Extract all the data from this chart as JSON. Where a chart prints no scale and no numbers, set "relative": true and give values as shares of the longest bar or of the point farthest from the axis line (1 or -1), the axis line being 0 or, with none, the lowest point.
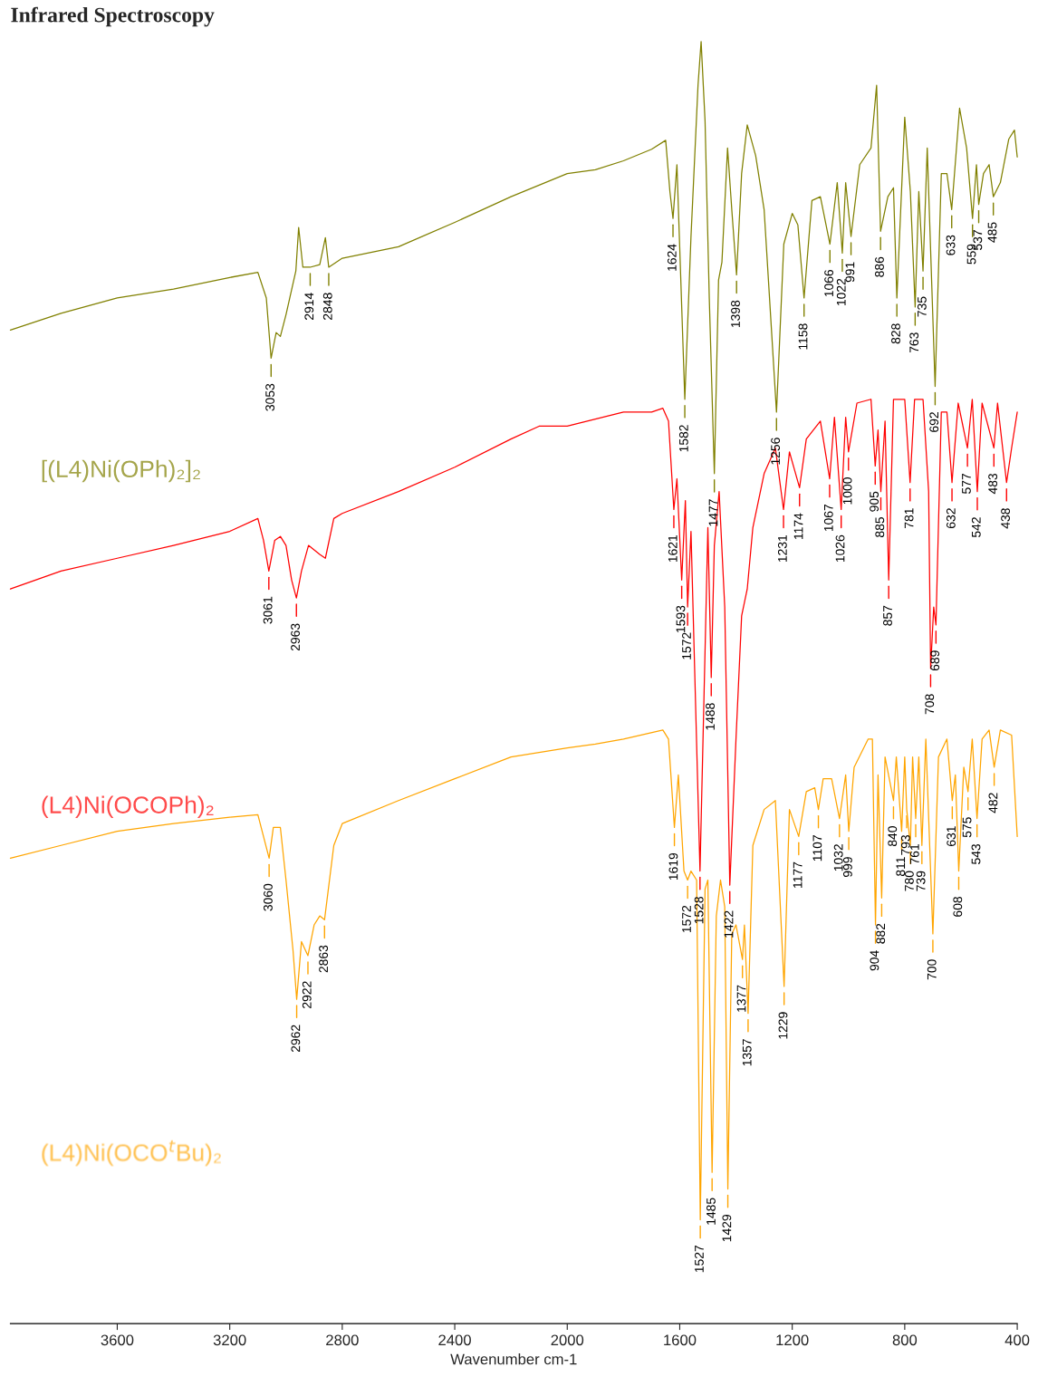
{
  "chart_data": {
    "type": "line",
    "title": "Infrared Spectroscopy",
    "xlabel": "Wavenumber cm-1",
    "relative": true,
    "tick_labels": "x",
    "grid": false,
    "legend": false,
    "marker": "none",
    "line_style": "solid",
    "xlim": [
      3980,
      400
    ],
    "xticks": [
      3600,
      3200,
      2800,
      2400,
      2000,
      1600,
      1200,
      800,
      400
    ],
    "series": [
      {
        "name": "[(L4)Ni(OPh)₂]₂",
        "color": "#808000",
        "x": [
          3980,
          3800,
          3600,
          3400,
          3200,
          3100,
          3070,
          3053,
          3035,
          3020,
          3000,
          2965,
          2955,
          2940,
          2914,
          2880,
          2860,
          2848,
          2800,
          2600,
          2400,
          2200,
          2000,
          1900,
          1800,
          1700,
          1650,
          1635,
          1624,
          1610,
          1582,
          1560,
          1535,
          1524,
          1510,
          1495,
          1477,
          1462,
          1450,
          1430,
          1415,
          1398,
          1380,
          1360,
          1330,
          1300,
          1256,
          1230,
          1200,
          1180,
          1158,
          1130,
          1100,
          1066,
          1040,
          1022,
          1010,
          991,
          960,
          920,
          900,
          886,
          860,
          840,
          828,
          800,
          780,
          763,
          750,
          735,
          720,
          692,
          670,
          650,
          633,
          605,
          580,
          559,
          545,
          537,
          520,
          500,
          485,
          460,
          430,
          410,
          400
        ],
        "values": [
          0.775,
          0.788,
          0.8,
          0.807,
          0.816,
          0.82,
          0.8,
          0.753,
          0.773,
          0.77,
          0.787,
          0.821,
          0.855,
          0.824,
          0.824,
          0.826,
          0.847,
          0.824,
          0.831,
          0.84,
          0.859,
          0.879,
          0.897,
          0.9,
          0.907,
          0.916,
          0.923,
          0.883,
          0.862,
          0.904,
          0.721,
          0.848,
          0.966,
          1.0,
          0.938,
          0.8,
          0.663,
          0.814,
          0.828,
          0.917,
          0.869,
          0.818,
          0.897,
          0.935,
          0.911,
          0.869,
          0.711,
          0.842,
          0.866,
          0.857,
          0.8,
          0.876,
          0.879,
          0.842,
          0.89,
          0.835,
          0.89,
          0.848,
          0.904,
          0.917,
          0.966,
          0.852,
          0.879,
          0.886,
          0.8,
          0.941,
          0.883,
          0.793,
          0.883,
          0.821,
          0.917,
          0.731,
          0.897,
          0.897,
          0.869,
          0.948,
          0.917,
          0.862,
          0.904,
          0.873,
          0.897,
          0.904,
          0.879,
          0.89,
          0.924,
          0.931,
          0.91
        ]
      },
      {
        "name": "(L4)Ni(OCOPh)₂",
        "color": "#ff0000",
        "x": [
          3980,
          3800,
          3600,
          3400,
          3200,
          3100,
          3080,
          3061,
          3040,
          3020,
          3000,
          2980,
          2963,
          2945,
          2920,
          2880,
          2860,
          2830,
          2800,
          2600,
          2400,
          2200,
          2100,
          2000,
          1800,
          1700,
          1660,
          1640,
          1621,
          1610,
          1593,
          1580,
          1572,
          1560,
          1528,
          1510,
          1500,
          1488,
          1477,
          1460,
          1440,
          1422,
          1400,
          1380,
          1360,
          1340,
          1300,
          1260,
          1231,
          1210,
          1174,
          1150,
          1100,
          1067,
          1050,
          1026,
          1010,
          1000,
          970,
          920,
          905,
          895,
          885,
          870,
          857,
          840,
          800,
          781,
          765,
          735,
          715,
          708,
          697,
          689,
          670,
          650,
          632,
          610,
          577,
          560,
          542,
          525,
          483,
          470,
          438,
          420,
          400
        ],
        "values": [
          0.573,
          0.587,
          0.597,
          0.607,
          0.618,
          0.628,
          0.611,
          0.587,
          0.611,
          0.614,
          0.607,
          0.58,
          0.566,
          0.587,
          0.607,
          0.6,
          0.597,
          0.628,
          0.632,
          0.649,
          0.668,
          0.69,
          0.7,
          0.7,
          0.711,
          0.711,
          0.714,
          0.704,
          0.635,
          0.659,
          0.58,
          0.642,
          0.559,
          0.618,
          0.353,
          0.525,
          0.621,
          0.504,
          0.607,
          0.649,
          0.559,
          0.342,
          0.456,
          0.552,
          0.573,
          0.621,
          0.663,
          0.683,
          0.635,
          0.68,
          0.652,
          0.69,
          0.704,
          0.659,
          0.707,
          0.635,
          0.707,
          0.68,
          0.718,
          0.721,
          0.669,
          0.697,
          0.649,
          0.704,
          0.58,
          0.721,
          0.721,
          0.656,
          0.721,
          0.721,
          0.649,
          0.511,
          0.559,
          0.545,
          0.711,
          0.711,
          0.656,
          0.718,
          0.683,
          0.721,
          0.649,
          0.718,
          0.683,
          0.718,
          0.656,
          0.683,
          0.711
        ]
      },
      {
        "name": "(L4)Ni(OCO$^{t}$Bu)₂",
        "color": "#ffa500",
        "x": [
          3980,
          3800,
          3600,
          3400,
          3200,
          3100,
          3080,
          3060,
          3045,
          3020,
          3000,
          2975,
          2962,
          2945,
          2922,
          2900,
          2880,
          2863,
          2830,
          2800,
          2600,
          2400,
          2200,
          2000,
          1900,
          1800,
          1660,
          1640,
          1619,
          1605,
          1585,
          1572,
          1560,
          1540,
          1527,
          1510,
          1500,
          1485,
          1470,
          1455,
          1440,
          1429,
          1415,
          1400,
          1377,
          1370,
          1357,
          1340,
          1300,
          1260,
          1229,
          1210,
          1177,
          1150,
          1120,
          1107,
          1090,
          1060,
          1032,
          1010,
          999,
          980,
          930,
          915,
          904,
          895,
          882,
          870,
          840,
          830,
          811,
          800,
          793,
          780,
          772,
          761,
          750,
          739,
          725,
          700,
          680,
          650,
          631,
          620,
          608,
          590,
          575,
          560,
          543,
          525,
          500,
          482,
          460,
          420,
          400
        ],
        "values": [
          0.363,
          0.373,
          0.384,
          0.39,
          0.395,
          0.397,
          0.38,
          0.363,
          0.387,
          0.387,
          0.346,
          0.291,
          0.253,
          0.298,
          0.287,
          0.311,
          0.318,
          0.315,
          0.373,
          0.39,
          0.408,
          0.425,
          0.442,
          0.449,
          0.452,
          0.456,
          0.463,
          0.456,
          0.387,
          0.428,
          0.353,
          0.346,
          0.353,
          0.346,
          0.081,
          0.339,
          0.346,
          0.118,
          0.318,
          0.346,
          0.325,
          0.105,
          0.304,
          0.311,
          0.284,
          0.311,
          0.242,
          0.373,
          0.401,
          0.408,
          0.263,
          0.401,
          0.38,
          0.415,
          0.418,
          0.401,
          0.425,
          0.425,
          0.394,
          0.428,
          0.384,
          0.434,
          0.456,
          0.456,
          0.311,
          0.428,
          0.332,
          0.442,
          0.408,
          0.442,
          0.384,
          0.442,
          0.401,
          0.373,
          0.442,
          0.394,
          0.442,
          0.373,
          0.456,
          0.304,
          0.442,
          0.456,
          0.408,
          0.428,
          0.353,
          0.434,
          0.415,
          0.456,
          0.394,
          0.456,
          0.463,
          0.434,
          0.463,
          0.459,
          0.38
        ]
      }
    ],
    "annotations": [
      {
        "text": "3053",
        "x": 3053,
        "y": 0.753
      },
      {
        "text": "2914",
        "x": 2914,
        "y": 0.824
      },
      {
        "text": "2848",
        "x": 2848,
        "y": 0.824
      },
      {
        "text": "1624",
        "x": 1624,
        "y": 0.862
      },
      {
        "text": "1582",
        "x": 1582,
        "y": 0.721
      },
      {
        "text": "1477",
        "x": 1477,
        "y": 0.663
      },
      {
        "text": "1398",
        "x": 1398,
        "y": 0.818
      },
      {
        "text": "1256",
        "x": 1256,
        "y": 0.711
      },
      {
        "text": "1158",
        "x": 1158,
        "y": 0.8
      },
      {
        "text": "1066",
        "x": 1066,
        "y": 0.842
      },
      {
        "text": "1022",
        "x": 1022,
        "y": 0.835
      },
      {
        "text": "991",
        "x": 991,
        "y": 0.848
      },
      {
        "text": "886",
        "x": 886,
        "y": 0.852
      },
      {
        "text": "828",
        "x": 828,
        "y": 0.8
      },
      {
        "text": "763",
        "x": 763,
        "y": 0.793
      },
      {
        "text": "735",
        "x": 735,
        "y": 0.821
      },
      {
        "text": "692",
        "x": 692,
        "y": 0.731
      },
      {
        "text": "633",
        "x": 633,
        "y": 0.869
      },
      {
        "text": "559",
        "x": 559,
        "y": 0.862
      },
      {
        "text": "537",
        "x": 537,
        "y": 0.873
      },
      {
        "text": "485",
        "x": 485,
        "y": 0.879
      },
      {
        "text": "3061",
        "x": 3061,
        "y": 0.587
      },
      {
        "text": "2963",
        "x": 2963,
        "y": 0.566
      },
      {
        "text": "1621",
        "x": 1621,
        "y": 0.635
      },
      {
        "text": "1593",
        "x": 1593,
        "y": 0.58
      },
      {
        "text": "1572",
        "x": 1572,
        "y": 0.559
      },
      {
        "text": "1528",
        "x": 1528,
        "y": 0.353
      },
      {
        "text": "1488",
        "x": 1488,
        "y": 0.504
      },
      {
        "text": "1422",
        "x": 1422,
        "y": 0.342
      },
      {
        "text": "1231",
        "x": 1231,
        "y": 0.635
      },
      {
        "text": "1174",
        "x": 1174,
        "y": 0.652
      },
      {
        "text": "1067",
        "x": 1067,
        "y": 0.659
      },
      {
        "text": "1026",
        "x": 1026,
        "y": 0.635
      },
      {
        "text": "1000",
        "x": 1000,
        "y": 0.68
      },
      {
        "text": "905",
        "x": 905,
        "y": 0.669
      },
      {
        "text": "885",
        "x": 885,
        "y": 0.649
      },
      {
        "text": "857",
        "x": 857,
        "y": 0.58
      },
      {
        "text": "781",
        "x": 781,
        "y": 0.656
      },
      {
        "text": "708",
        "x": 708,
        "y": 0.511
      },
      {
        "text": "689",
        "x": 689,
        "y": 0.545
      },
      {
        "text": "632",
        "x": 632,
        "y": 0.656
      },
      {
        "text": "577",
        "x": 577,
        "y": 0.683
      },
      {
        "text": "542",
        "x": 542,
        "y": 0.649
      },
      {
        "text": "483",
        "x": 483,
        "y": 0.683
      },
      {
        "text": "438",
        "x": 438,
        "y": 0.656
      },
      {
        "text": "3060",
        "x": 3060,
        "y": 0.363
      },
      {
        "text": "2962",
        "x": 2962,
        "y": 0.253
      },
      {
        "text": "2922",
        "x": 2922,
        "y": 0.287
      },
      {
        "text": "2863",
        "x": 2863,
        "y": 0.315
      },
      {
        "text": "1619",
        "x": 1619,
        "y": 0.387
      },
      {
        "text": "1572",
        "x": 1572,
        "y": 0.346
      },
      {
        "text": "1527",
        "x": 1527,
        "y": 0.081
      },
      {
        "text": "1485",
        "x": 1485,
        "y": 0.118
      },
      {
        "text": "1429",
        "x": 1429,
        "y": 0.105
      },
      {
        "text": "1377",
        "x": 1377,
        "y": 0.284
      },
      {
        "text": "1357",
        "x": 1357,
        "y": 0.242
      },
      {
        "text": "1229",
        "x": 1229,
        "y": 0.263
      },
      {
        "text": "1177",
        "x": 1177,
        "y": 0.38
      },
      {
        "text": "1107",
        "x": 1107,
        "y": 0.401
      },
      {
        "text": "1032",
        "x": 1032,
        "y": 0.394
      },
      {
        "text": "999",
        "x": 999,
        "y": 0.384
      },
      {
        "text": "904",
        "x": 904,
        "y": 0.311
      },
      {
        "text": "882",
        "x": 882,
        "y": 0.332
      },
      {
        "text": "840",
        "x": 840,
        "y": 0.408
      },
      {
        "text": "811",
        "x": 811,
        "y": 0.384
      },
      {
        "text": "793",
        "x": 793,
        "y": 0.401
      },
      {
        "text": "780",
        "x": 780,
        "y": 0.373
      },
      {
        "text": "761",
        "x": 761,
        "y": 0.394
      },
      {
        "text": "739",
        "x": 739,
        "y": 0.373
      },
      {
        "text": "700",
        "x": 700,
        "y": 0.304
      },
      {
        "text": "631",
        "x": 631,
        "y": 0.408
      },
      {
        "text": "608",
        "x": 608,
        "y": 0.353
      },
      {
        "text": "575",
        "x": 575,
        "y": 0.415
      },
      {
        "text": "543",
        "x": 543,
        "y": 0.394
      },
      {
        "text": "482",
        "x": 482,
        "y": 0.434
      }
    ]
  }
}
